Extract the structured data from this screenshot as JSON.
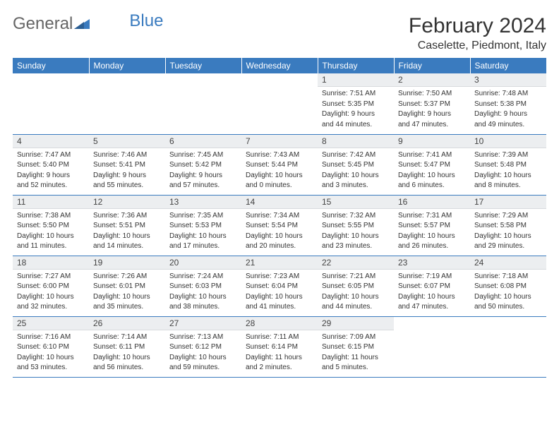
{
  "brand": {
    "part1": "General",
    "part2": "Blue"
  },
  "title": "February 2024",
  "location": "Caselette, Piedmont, Italy",
  "colors": {
    "header_bg": "#3a7bbf",
    "header_text": "#ffffff",
    "daynum_bg": "#eceef0",
    "row_border": "#3a7bbf",
    "body_text": "#333333"
  },
  "day_names": [
    "Sunday",
    "Monday",
    "Tuesday",
    "Wednesday",
    "Thursday",
    "Friday",
    "Saturday"
  ],
  "weeks": [
    [
      {
        "empty": true
      },
      {
        "empty": true
      },
      {
        "empty": true
      },
      {
        "empty": true
      },
      {
        "day": "1",
        "sunrise": "Sunrise: 7:51 AM",
        "sunset": "Sunset: 5:35 PM",
        "daylight1": "Daylight: 9 hours",
        "daylight2": "and 44 minutes."
      },
      {
        "day": "2",
        "sunrise": "Sunrise: 7:50 AM",
        "sunset": "Sunset: 5:37 PM",
        "daylight1": "Daylight: 9 hours",
        "daylight2": "and 47 minutes."
      },
      {
        "day": "3",
        "sunrise": "Sunrise: 7:48 AM",
        "sunset": "Sunset: 5:38 PM",
        "daylight1": "Daylight: 9 hours",
        "daylight2": "and 49 minutes."
      }
    ],
    [
      {
        "day": "4",
        "sunrise": "Sunrise: 7:47 AM",
        "sunset": "Sunset: 5:40 PM",
        "daylight1": "Daylight: 9 hours",
        "daylight2": "and 52 minutes."
      },
      {
        "day": "5",
        "sunrise": "Sunrise: 7:46 AM",
        "sunset": "Sunset: 5:41 PM",
        "daylight1": "Daylight: 9 hours",
        "daylight2": "and 55 minutes."
      },
      {
        "day": "6",
        "sunrise": "Sunrise: 7:45 AM",
        "sunset": "Sunset: 5:42 PM",
        "daylight1": "Daylight: 9 hours",
        "daylight2": "and 57 minutes."
      },
      {
        "day": "7",
        "sunrise": "Sunrise: 7:43 AM",
        "sunset": "Sunset: 5:44 PM",
        "daylight1": "Daylight: 10 hours",
        "daylight2": "and 0 minutes."
      },
      {
        "day": "8",
        "sunrise": "Sunrise: 7:42 AM",
        "sunset": "Sunset: 5:45 PM",
        "daylight1": "Daylight: 10 hours",
        "daylight2": "and 3 minutes."
      },
      {
        "day": "9",
        "sunrise": "Sunrise: 7:41 AM",
        "sunset": "Sunset: 5:47 PM",
        "daylight1": "Daylight: 10 hours",
        "daylight2": "and 6 minutes."
      },
      {
        "day": "10",
        "sunrise": "Sunrise: 7:39 AM",
        "sunset": "Sunset: 5:48 PM",
        "daylight1": "Daylight: 10 hours",
        "daylight2": "and 8 minutes."
      }
    ],
    [
      {
        "day": "11",
        "sunrise": "Sunrise: 7:38 AM",
        "sunset": "Sunset: 5:50 PM",
        "daylight1": "Daylight: 10 hours",
        "daylight2": "and 11 minutes."
      },
      {
        "day": "12",
        "sunrise": "Sunrise: 7:36 AM",
        "sunset": "Sunset: 5:51 PM",
        "daylight1": "Daylight: 10 hours",
        "daylight2": "and 14 minutes."
      },
      {
        "day": "13",
        "sunrise": "Sunrise: 7:35 AM",
        "sunset": "Sunset: 5:53 PM",
        "daylight1": "Daylight: 10 hours",
        "daylight2": "and 17 minutes."
      },
      {
        "day": "14",
        "sunrise": "Sunrise: 7:34 AM",
        "sunset": "Sunset: 5:54 PM",
        "daylight1": "Daylight: 10 hours",
        "daylight2": "and 20 minutes."
      },
      {
        "day": "15",
        "sunrise": "Sunrise: 7:32 AM",
        "sunset": "Sunset: 5:55 PM",
        "daylight1": "Daylight: 10 hours",
        "daylight2": "and 23 minutes."
      },
      {
        "day": "16",
        "sunrise": "Sunrise: 7:31 AM",
        "sunset": "Sunset: 5:57 PM",
        "daylight1": "Daylight: 10 hours",
        "daylight2": "and 26 minutes."
      },
      {
        "day": "17",
        "sunrise": "Sunrise: 7:29 AM",
        "sunset": "Sunset: 5:58 PM",
        "daylight1": "Daylight: 10 hours",
        "daylight2": "and 29 minutes."
      }
    ],
    [
      {
        "day": "18",
        "sunrise": "Sunrise: 7:27 AM",
        "sunset": "Sunset: 6:00 PM",
        "daylight1": "Daylight: 10 hours",
        "daylight2": "and 32 minutes."
      },
      {
        "day": "19",
        "sunrise": "Sunrise: 7:26 AM",
        "sunset": "Sunset: 6:01 PM",
        "daylight1": "Daylight: 10 hours",
        "daylight2": "and 35 minutes."
      },
      {
        "day": "20",
        "sunrise": "Sunrise: 7:24 AM",
        "sunset": "Sunset: 6:03 PM",
        "daylight1": "Daylight: 10 hours",
        "daylight2": "and 38 minutes."
      },
      {
        "day": "21",
        "sunrise": "Sunrise: 7:23 AM",
        "sunset": "Sunset: 6:04 PM",
        "daylight1": "Daylight: 10 hours",
        "daylight2": "and 41 minutes."
      },
      {
        "day": "22",
        "sunrise": "Sunrise: 7:21 AM",
        "sunset": "Sunset: 6:05 PM",
        "daylight1": "Daylight: 10 hours",
        "daylight2": "and 44 minutes."
      },
      {
        "day": "23",
        "sunrise": "Sunrise: 7:19 AM",
        "sunset": "Sunset: 6:07 PM",
        "daylight1": "Daylight: 10 hours",
        "daylight2": "and 47 minutes."
      },
      {
        "day": "24",
        "sunrise": "Sunrise: 7:18 AM",
        "sunset": "Sunset: 6:08 PM",
        "daylight1": "Daylight: 10 hours",
        "daylight2": "and 50 minutes."
      }
    ],
    [
      {
        "day": "25",
        "sunrise": "Sunrise: 7:16 AM",
        "sunset": "Sunset: 6:10 PM",
        "daylight1": "Daylight: 10 hours",
        "daylight2": "and 53 minutes."
      },
      {
        "day": "26",
        "sunrise": "Sunrise: 7:14 AM",
        "sunset": "Sunset: 6:11 PM",
        "daylight1": "Daylight: 10 hours",
        "daylight2": "and 56 minutes."
      },
      {
        "day": "27",
        "sunrise": "Sunrise: 7:13 AM",
        "sunset": "Sunset: 6:12 PM",
        "daylight1": "Daylight: 10 hours",
        "daylight2": "and 59 minutes."
      },
      {
        "day": "28",
        "sunrise": "Sunrise: 7:11 AM",
        "sunset": "Sunset: 6:14 PM",
        "daylight1": "Daylight: 11 hours",
        "daylight2": "and 2 minutes."
      },
      {
        "day": "29",
        "sunrise": "Sunrise: 7:09 AM",
        "sunset": "Sunset: 6:15 PM",
        "daylight1": "Daylight: 11 hours",
        "daylight2": "and 5 minutes."
      },
      {
        "empty": true
      },
      {
        "empty": true
      }
    ]
  ]
}
